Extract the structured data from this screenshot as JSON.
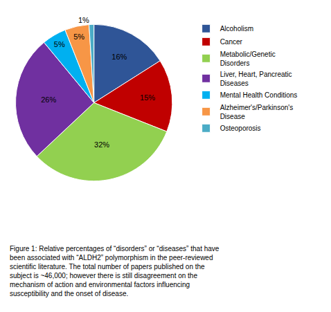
{
  "chart_data": {
    "type": "pie",
    "categories": [
      "Alcoholism",
      "Cancer",
      "Metabolic/Genetic\nDisorders",
      "Liver, Heart, Pancreatic\nDiseases",
      "Mental Health Conditions",
      "Alzheimer's/Parkinson's\nDisease",
      "Osteoporosis"
    ],
    "values": [
      16,
      15,
      32,
      26,
      5,
      5,
      1
    ],
    "value_labels": [
      "16%",
      "15%",
      "32%",
      "26%",
      "5%",
      "5%",
      "1%"
    ],
    "colors": [
      "#2f5597",
      "#c00000",
      "#92d050",
      "#7030a0",
      "#00b0f0",
      "#f79646",
      "#4bacc6"
    ],
    "data_labels": true,
    "legend": "right",
    "annotations": [
      "Figure 1: Relative percentages of “disorders” or “diseases” that have\nbeen associated with “ALDH2” polymorphism in the peer-reviewed\nscientific literature. The total number of papers published on the\nsubject is ~46,000; however there is still disagreement on the\nmechanism of action and environmental factors influencing\nsusceptibility and the onset of disease."
    ]
  }
}
